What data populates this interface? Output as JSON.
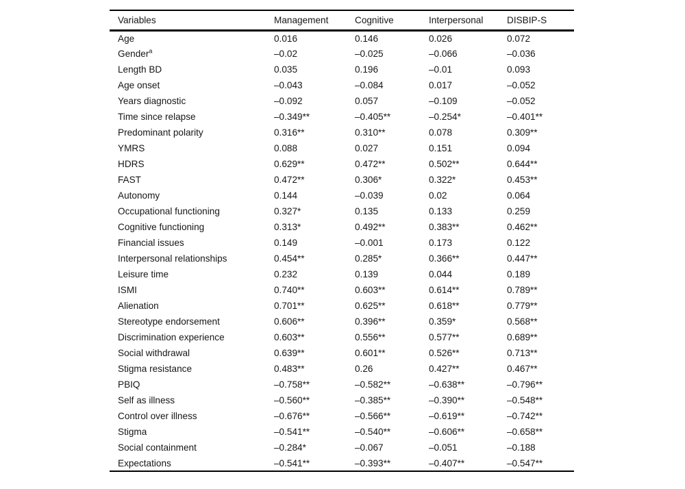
{
  "table": {
    "columns": [
      "Variables",
      "Management",
      "Cognitive",
      "Interpersonal",
      "DISBIP-S"
    ],
    "rows": [
      {
        "variable": "Age",
        "sup": "",
        "values": [
          "0.016",
          "0.146",
          "0.026",
          "0.072"
        ]
      },
      {
        "variable": "Gender",
        "sup": "a",
        "values": [
          "–0.02",
          "–0.025",
          "–0.066",
          "–0.036"
        ]
      },
      {
        "variable": "Length BD",
        "sup": "",
        "values": [
          "0.035",
          "0.196",
          "–0.01",
          "0.093"
        ]
      },
      {
        "variable": "Age onset",
        "sup": "",
        "values": [
          "–0.043",
          "–0.084",
          "0.017",
          "–0.052"
        ]
      },
      {
        "variable": "Years diagnostic",
        "sup": "",
        "values": [
          "–0.092",
          "0.057",
          "–0.109",
          "–0.052"
        ]
      },
      {
        "variable": "Time since relapse",
        "sup": "",
        "values": [
          "–0.349**",
          "–0.405**",
          "–0.254*",
          "–0.401**"
        ]
      },
      {
        "variable": "Predominant polarity",
        "sup": "",
        "values": [
          "0.316**",
          "0.310**",
          "0.078",
          "0.309**"
        ]
      },
      {
        "variable": "YMRS",
        "sup": "",
        "values": [
          "0.088",
          "0.027",
          "0.151",
          "0.094"
        ]
      },
      {
        "variable": "HDRS",
        "sup": "",
        "values": [
          "0.629**",
          "0.472**",
          "0.502**",
          "0.644**"
        ]
      },
      {
        "variable": "FAST",
        "sup": "",
        "values": [
          "0.472**",
          "0.306*",
          "0.322*",
          "0.453**"
        ]
      },
      {
        "variable": "Autonomy",
        "sup": "",
        "values": [
          "0.144",
          "–0.039",
          "0.02",
          "0.064"
        ]
      },
      {
        "variable": "Occupational functioning",
        "sup": "",
        "values": [
          "0.327*",
          "0.135",
          "0.133",
          "0.259"
        ]
      },
      {
        "variable": "Cognitive functioning",
        "sup": "",
        "values": [
          "0.313*",
          "0.492**",
          "0.383**",
          "0.462**"
        ]
      },
      {
        "variable": "Financial issues",
        "sup": "",
        "values": [
          "0.149",
          "–0.001",
          "0.173",
          "0.122"
        ]
      },
      {
        "variable": "Interpersonal relationships",
        "sup": "",
        "values": [
          "0.454**",
          "0.285*",
          "0.366**",
          "0.447**"
        ]
      },
      {
        "variable": "Leisure time",
        "sup": "",
        "values": [
          "0.232",
          "0.139",
          "0.044",
          "0.189"
        ]
      },
      {
        "variable": "ISMI",
        "sup": "",
        "values": [
          "0.740**",
          "0.603**",
          "0.614**",
          "0.789**"
        ]
      },
      {
        "variable": "Alienation",
        "sup": "",
        "values": [
          "0.701**",
          "0.625**",
          "0.618**",
          "0.779**"
        ]
      },
      {
        "variable": "Stereotype endorsement",
        "sup": "",
        "values": [
          "0.606**",
          "0.396**",
          "0.359*",
          "0.568**"
        ]
      },
      {
        "variable": "Discrimination experience",
        "sup": "",
        "values": [
          "0.603**",
          "0.556**",
          "0.577**",
          "0.689**"
        ]
      },
      {
        "variable": "Social withdrawal",
        "sup": "",
        "values": [
          "0.639**",
          "0.601**",
          "0.526**",
          "0.713**"
        ]
      },
      {
        "variable": "Stigma resistance",
        "sup": "",
        "values": [
          "0.483**",
          "0.26",
          "0.427**",
          "0.467**"
        ]
      },
      {
        "variable": "PBIQ",
        "sup": "",
        "values": [
          "–0.758**",
          "–0.582**",
          "–0.638**",
          "–0.796**"
        ]
      },
      {
        "variable": "Self as illness",
        "sup": "",
        "values": [
          "–0.560**",
          "–0.385**",
          "–0.390**",
          "–0.548**"
        ]
      },
      {
        "variable": "Control over illness",
        "sup": "",
        "values": [
          "–0.676**",
          "–0.566**",
          "–0.619**",
          "–0.742**"
        ]
      },
      {
        "variable": "Stigma",
        "sup": "",
        "values": [
          "–0.541**",
          "–0.540**",
          "–0.606**",
          "–0.658**"
        ]
      },
      {
        "variable": "Social containment",
        "sup": "",
        "values": [
          "–0.284*",
          "–0.067",
          "–0.051",
          "–0.188"
        ]
      },
      {
        "variable": "Expectations",
        "sup": "",
        "values": [
          "–0.541**",
          "–0.393**",
          "–0.407**",
          "–0.547**"
        ]
      }
    ]
  },
  "colors": {
    "text": "#161616",
    "rule": "#000000",
    "background": "#ffffff"
  }
}
